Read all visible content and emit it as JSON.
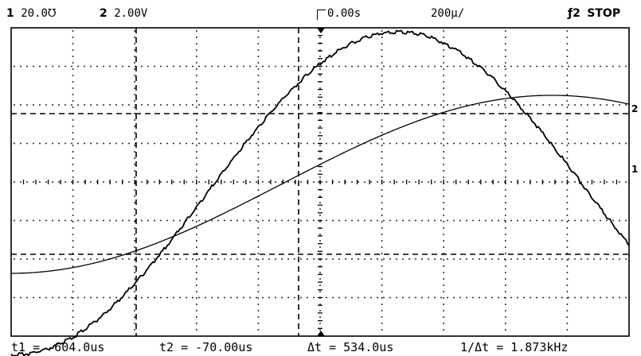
{
  "header": {
    "ch1_num": "1",
    "ch1_scale": "20.0℧",
    "ch2_num": "2",
    "ch2_scale": "2.00V",
    "delay": "0.00s",
    "timebase": "200µ/",
    "trigger_channel": "2",
    "run_state": "STOP"
  },
  "markers": {
    "ch2_label": "2",
    "ch1_label": "1"
  },
  "footer": {
    "t1": "t1 = -604.0us",
    "t2": "t2 = -70.00us",
    "dt": "Δt = 534.0us",
    "inv_dt": "1/Δt = 1.873kHz"
  },
  "colors": {
    "trace": "#000000",
    "background": "#ffffff"
  }
}
